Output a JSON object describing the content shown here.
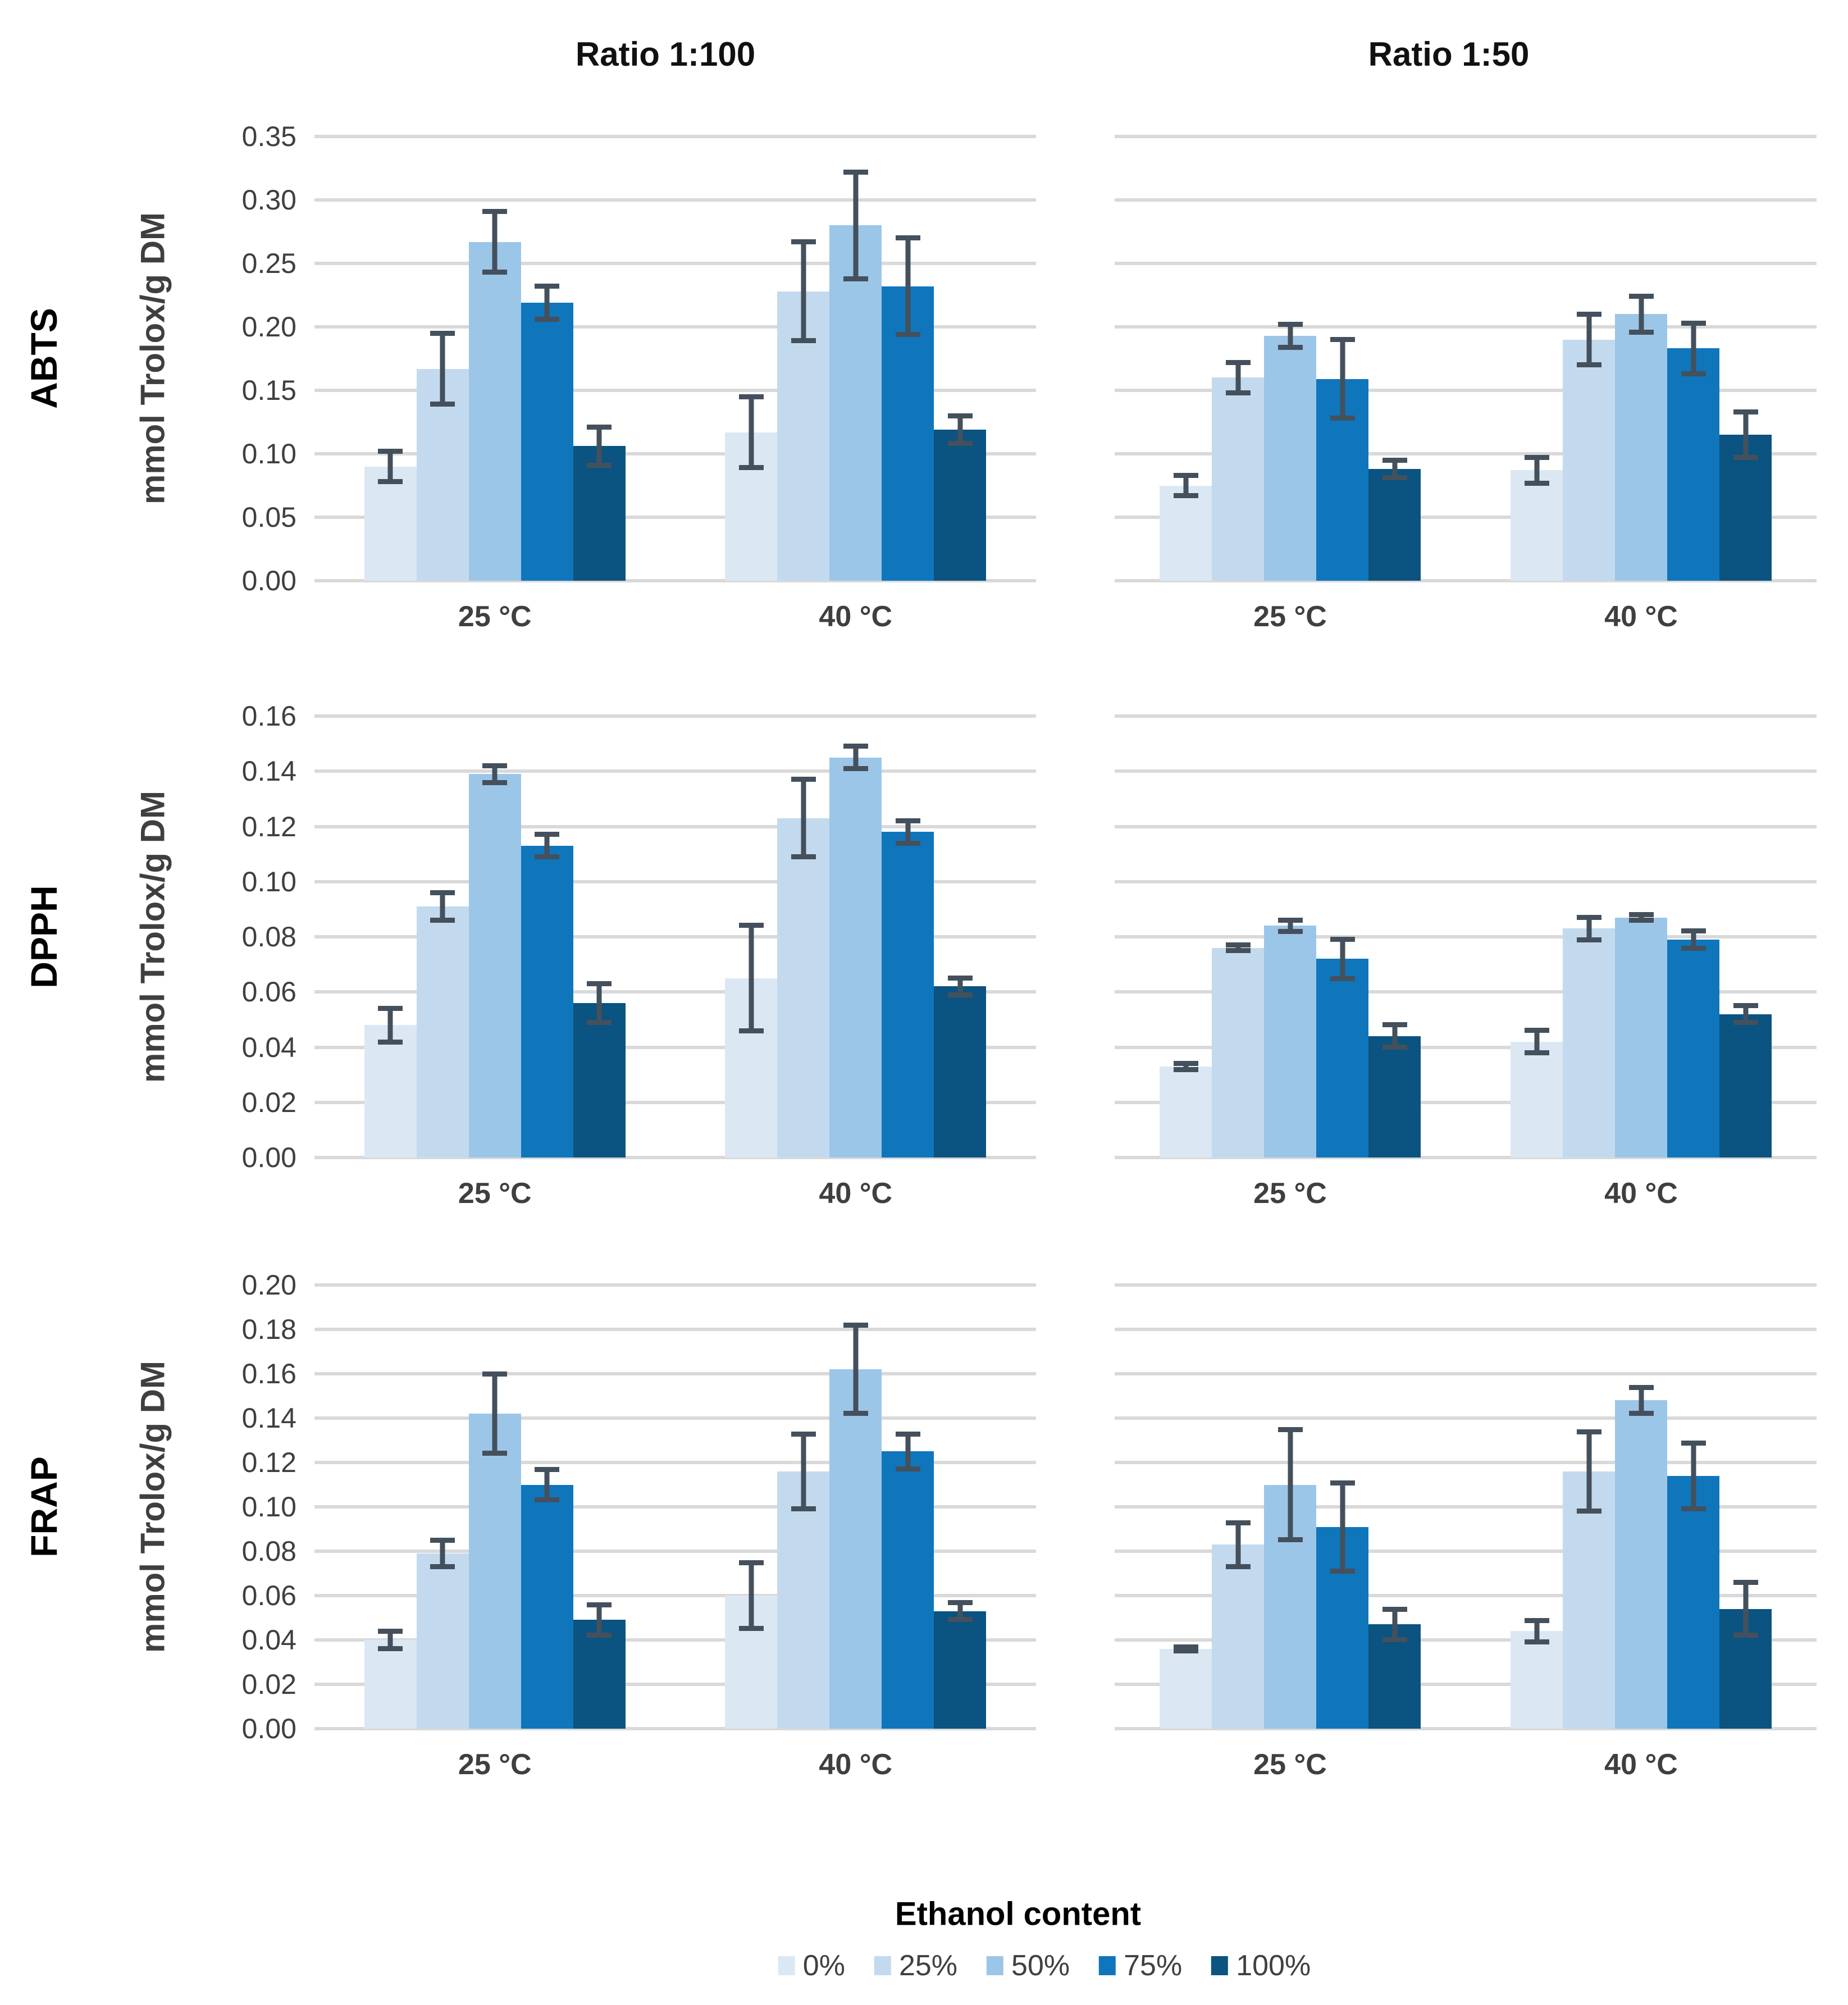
{
  "page": {
    "background": "#ffffff"
  },
  "columns": [
    {
      "title": "Ratio 1:100"
    },
    {
      "title": "Ratio 1:50"
    }
  ],
  "rows": [
    {
      "label": "ABTS"
    },
    {
      "label": "DPPH"
    },
    {
      "label": "FRAP"
    }
  ],
  "axis": {
    "y_title": "mmol Trolox/g DM",
    "x_categories": [
      "25 °C",
      "40 °C"
    ]
  },
  "legend": {
    "title": "Ethanol content",
    "position": "bottom",
    "items": [
      {
        "label": "0%",
        "color": "#dbe8f4"
      },
      {
        "label": "25%",
        "color": "#c3daee"
      },
      {
        "label": "50%",
        "color": "#9cc6e8"
      },
      {
        "label": "75%",
        "color": "#0f76bc"
      },
      {
        "label": "100%",
        "color": "#0b5380"
      }
    ]
  },
  "style_colors": {
    "gridline": "#d9d9d9",
    "error_bar": "#44505c",
    "tick_text": "#3f3f3f",
    "title_text": "#000000"
  },
  "chart_data": [
    {
      "type": "bar",
      "row": "ABTS",
      "column": "Ratio 1:100",
      "ylabel": "mmol Trolox/g DM",
      "ylim": [
        0,
        0.35
      ],
      "ytick_step": 0.05,
      "grid": true,
      "categories": [
        "25 °C",
        "40 °C"
      ],
      "series": [
        {
          "name": "0%",
          "values": [
            0.09,
            0.117
          ],
          "errors": [
            0.014,
            0.03
          ]
        },
        {
          "name": "25%",
          "values": [
            0.167,
            0.228
          ],
          "errors": [
            0.03,
            0.041
          ]
        },
        {
          "name": "50%",
          "values": [
            0.267,
            0.28
          ],
          "errors": [
            0.026,
            0.044
          ]
        },
        {
          "name": "75%",
          "values": [
            0.219,
            0.232
          ],
          "errors": [
            0.015,
            0.04
          ]
        },
        {
          "name": "100%",
          "values": [
            0.106,
            0.119
          ],
          "errors": [
            0.017,
            0.013
          ]
        }
      ]
    },
    {
      "type": "bar",
      "row": "ABTS",
      "column": "Ratio 1:50",
      "ylabel": "",
      "ylim": [
        0,
        0.35
      ],
      "ytick_step": 0.05,
      "grid": true,
      "categories": [
        "25 °C",
        "40 °C"
      ],
      "series": [
        {
          "name": "0%",
          "values": [
            0.075,
            0.087
          ],
          "errors": [
            0.01,
            0.012
          ]
        },
        {
          "name": "25%",
          "values": [
            0.16,
            0.19
          ],
          "errors": [
            0.014,
            0.022
          ]
        },
        {
          "name": "50%",
          "values": [
            0.193,
            0.21
          ],
          "errors": [
            0.011,
            0.016
          ]
        },
        {
          "name": "75%",
          "values": [
            0.159,
            0.183
          ],
          "errors": [
            0.033,
            0.022
          ]
        },
        {
          "name": "100%",
          "values": [
            0.088,
            0.115
          ],
          "errors": [
            0.009,
            0.02
          ]
        }
      ]
    },
    {
      "type": "bar",
      "row": "DPPH",
      "column": "Ratio 1:100",
      "ylabel": "mmol Trolox/g DM",
      "ylim": [
        0,
        0.16
      ],
      "ytick_step": 0.02,
      "grid": true,
      "categories": [
        "25 °C",
        "40 °C"
      ],
      "series": [
        {
          "name": "0%",
          "values": [
            0.048,
            0.065
          ],
          "errors": [
            0.007,
            0.02
          ]
        },
        {
          "name": "25%",
          "values": [
            0.091,
            0.123
          ],
          "errors": [
            0.006,
            0.015
          ]
        },
        {
          "name": "50%",
          "values": [
            0.139,
            0.145
          ],
          "errors": [
            0.004,
            0.005
          ]
        },
        {
          "name": "75%",
          "values": [
            0.113,
            0.118
          ],
          "errors": [
            0.005,
            0.005
          ]
        },
        {
          "name": "100%",
          "values": [
            0.056,
            0.062
          ],
          "errors": [
            0.008,
            0.004
          ]
        }
      ]
    },
    {
      "type": "bar",
      "row": "DPPH",
      "column": "Ratio 1:50",
      "ylabel": "",
      "ylim": [
        0,
        0.16
      ],
      "ytick_step": 0.02,
      "grid": true,
      "categories": [
        "25 °C",
        "40 °C"
      ],
      "series": [
        {
          "name": "0%",
          "values": [
            0.033,
            0.042
          ],
          "errors": [
            0.002,
            0.005
          ]
        },
        {
          "name": "25%",
          "values": [
            0.076,
            0.083
          ],
          "errors": [
            0.002,
            0.005
          ]
        },
        {
          "name": "50%",
          "values": [
            0.084,
            0.087
          ],
          "errors": [
            0.003,
            0.002
          ]
        },
        {
          "name": "75%",
          "values": [
            0.072,
            0.079
          ],
          "errors": [
            0.008,
            0.004
          ]
        },
        {
          "name": "100%",
          "values": [
            0.044,
            0.052
          ],
          "errors": [
            0.005,
            0.004
          ]
        }
      ]
    },
    {
      "type": "bar",
      "row": "FRAP",
      "column": "Ratio 1:100",
      "ylabel": "mmol Trolox/g DM",
      "ylim": [
        0,
        0.2
      ],
      "ytick_step": 0.02,
      "grid": true,
      "categories": [
        "25 °C",
        "40 °C"
      ],
      "series": [
        {
          "name": "0%",
          "values": [
            0.04,
            0.06
          ],
          "errors": [
            0.005,
            0.016
          ]
        },
        {
          "name": "25%",
          "values": [
            0.079,
            0.116
          ],
          "errors": [
            0.007,
            0.018
          ]
        },
        {
          "name": "50%",
          "values": [
            0.142,
            0.162
          ],
          "errors": [
            0.019,
            0.021
          ]
        },
        {
          "name": "75%",
          "values": [
            0.11,
            0.125
          ],
          "errors": [
            0.008,
            0.009
          ]
        },
        {
          "name": "100%",
          "values": [
            0.049,
            0.053
          ],
          "errors": [
            0.008,
            0.005
          ]
        }
      ]
    },
    {
      "type": "bar",
      "row": "FRAP",
      "column": "Ratio 1:50",
      "ylabel": "",
      "ylim": [
        0,
        0.2
      ],
      "ytick_step": 0.02,
      "grid": true,
      "categories": [
        "25 °C",
        "40 °C"
      ],
      "series": [
        {
          "name": "0%",
          "values": [
            0.036,
            0.044
          ],
          "errors": [
            0.002,
            0.006
          ]
        },
        {
          "name": "25%",
          "values": [
            0.083,
            0.116
          ],
          "errors": [
            0.011,
            0.019
          ]
        },
        {
          "name": "50%",
          "values": [
            0.11,
            0.148
          ],
          "errors": [
            0.026,
            0.007
          ]
        },
        {
          "name": "75%",
          "values": [
            0.091,
            0.114
          ],
          "errors": [
            0.021,
            0.016
          ]
        },
        {
          "name": "100%",
          "values": [
            0.047,
            0.054
          ],
          "errors": [
            0.008,
            0.013
          ]
        }
      ]
    }
  ]
}
